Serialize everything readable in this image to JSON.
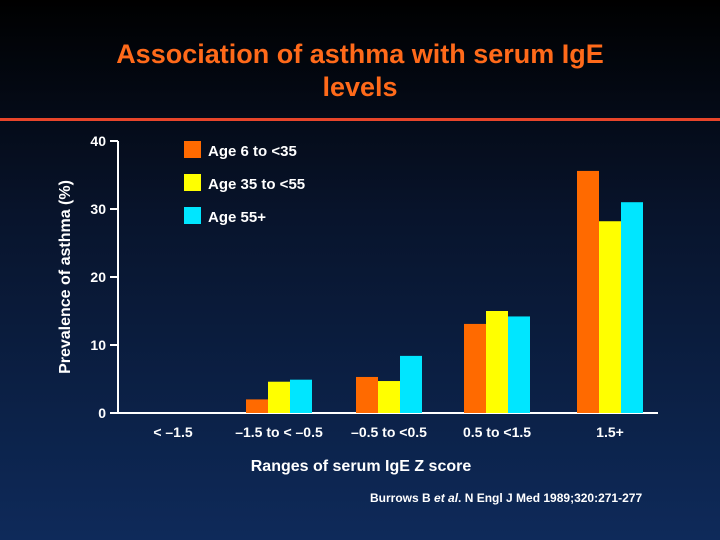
{
  "slide": {
    "title_line1": "Association of asthma with serum IgE",
    "title_line2": "levels",
    "citation": {
      "authors": "Burrows B ",
      "etal": "et al",
      "rest": ". N Engl J Med 1989;320:271-277"
    }
  },
  "chart_data": {
    "type": "bar",
    "ylabel": "Prevalence of asthma (%)",
    "xlabel": "Ranges of serum IgE Z score",
    "ylim": [
      0,
      40
    ],
    "yticks": [
      0,
      10,
      20,
      30,
      40
    ],
    "grid": false,
    "legend_position": "top-left",
    "categories": [
      "< –1.5",
      "–1.5 to < –0.5",
      "–0.5 to <0.5",
      "0.5 to <1.5",
      "1.5+"
    ],
    "series": [
      {
        "name": "Age 6 to <35",
        "color": "#ff6a00",
        "values": [
          0,
          2.0,
          5.3,
          13.1,
          35.6
        ]
      },
      {
        "name": "Age 35 to <55",
        "color": "#ffff00",
        "values": [
          0,
          4.6,
          4.7,
          15.0,
          28.2
        ]
      },
      {
        "name": "Age 55+",
        "color": "#00e6ff",
        "values": [
          0,
          4.9,
          8.4,
          14.2,
          31.0
        ]
      }
    ]
  }
}
